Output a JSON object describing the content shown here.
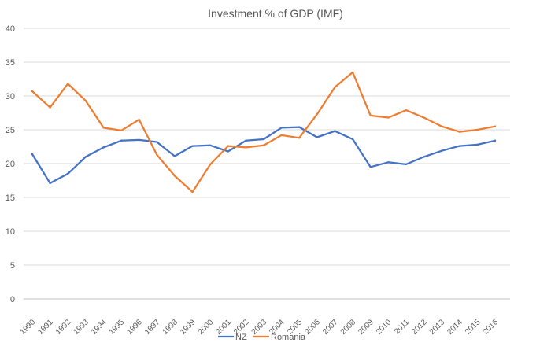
{
  "chart_data": {
    "type": "line",
    "title": "Investment % of GDP  (IMF)",
    "xlabel": "",
    "ylabel": "",
    "ylim": [
      0,
      40
    ],
    "yticks": [
      0,
      5,
      10,
      15,
      20,
      25,
      30,
      35,
      40
    ],
    "grid": true,
    "legend_position": "bottom",
    "categories": [
      "1990",
      "1991",
      "1992",
      "1993",
      "1994",
      "1995",
      "1996",
      "1997",
      "1998",
      "1999",
      "2000",
      "2001",
      "2002",
      "2003",
      "2004",
      "2005",
      "2006",
      "2007",
      "2008",
      "2009",
      "2010",
      "2011",
      "2012",
      "2013",
      "2014",
      "2015",
      "2016"
    ],
    "series": [
      {
        "name": "NZ",
        "color": "#4472c4",
        "values": [
          21.4,
          17.1,
          18.5,
          21.0,
          22.4,
          23.4,
          23.5,
          23.2,
          21.1,
          22.6,
          22.7,
          21.8,
          23.4,
          23.6,
          25.3,
          25.4,
          23.9,
          24.8,
          23.6,
          19.5,
          20.2,
          19.9,
          21.0,
          21.9,
          22.6,
          22.8,
          23.4
        ]
      },
      {
        "name": "Romania",
        "color": "#ed7d31",
        "values": [
          30.7,
          28.3,
          31.8,
          29.3,
          25.3,
          24.9,
          26.5,
          21.3,
          18.2,
          15.8,
          19.9,
          22.6,
          22.4,
          22.7,
          24.2,
          23.8,
          27.3,
          31.3,
          33.5,
          27.1,
          26.8,
          27.9,
          26.8,
          25.5,
          24.7,
          25.0,
          25.5
        ]
      }
    ]
  }
}
